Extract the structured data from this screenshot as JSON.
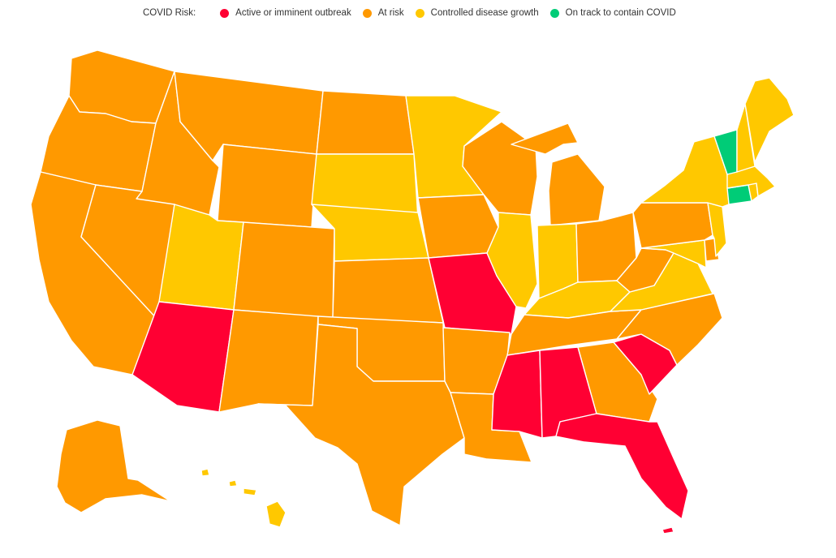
{
  "legend": {
    "title": "COVID Risk:",
    "items": [
      {
        "key": "active",
        "label": "Active or imminent outbreak",
        "color": "#ff0033"
      },
      {
        "key": "risk",
        "label": "At risk",
        "color": "#ff9900"
      },
      {
        "key": "controlled",
        "label": "Controlled disease growth",
        "color": "#ffc800"
      },
      {
        "key": "track",
        "label": "On track to contain COVID",
        "color": "#00cc77"
      }
    ]
  },
  "colors": {
    "active": "#ff0033",
    "risk": "#ff9900",
    "controlled": "#ffc800",
    "track": "#00cc77",
    "border": "#ffffff"
  },
  "states": [
    {
      "name": "Washington",
      "risk": "risk"
    },
    {
      "name": "Oregon",
      "risk": "risk"
    },
    {
      "name": "California",
      "risk": "risk"
    },
    {
      "name": "Idaho",
      "risk": "risk"
    },
    {
      "name": "Nevada",
      "risk": "risk"
    },
    {
      "name": "Montana",
      "risk": "risk"
    },
    {
      "name": "Wyoming",
      "risk": "risk"
    },
    {
      "name": "Utah",
      "risk": "controlled"
    },
    {
      "name": "Arizona",
      "risk": "active"
    },
    {
      "name": "Colorado",
      "risk": "risk"
    },
    {
      "name": "New Mexico",
      "risk": "risk"
    },
    {
      "name": "North Dakota",
      "risk": "risk"
    },
    {
      "name": "South Dakota",
      "risk": "controlled"
    },
    {
      "name": "Nebraska",
      "risk": "controlled"
    },
    {
      "name": "Kansas",
      "risk": "risk"
    },
    {
      "name": "Oklahoma",
      "risk": "risk"
    },
    {
      "name": "Texas",
      "risk": "risk"
    },
    {
      "name": "Minnesota",
      "risk": "controlled"
    },
    {
      "name": "Iowa",
      "risk": "risk"
    },
    {
      "name": "Missouri",
      "risk": "active"
    },
    {
      "name": "Arkansas",
      "risk": "risk"
    },
    {
      "name": "Louisiana",
      "risk": "risk"
    },
    {
      "name": "Wisconsin",
      "risk": "risk"
    },
    {
      "name": "Illinois",
      "risk": "controlled"
    },
    {
      "name": "Michigan",
      "risk": "risk"
    },
    {
      "name": "Indiana",
      "risk": "controlled"
    },
    {
      "name": "Ohio",
      "risk": "risk"
    },
    {
      "name": "Kentucky",
      "risk": "controlled"
    },
    {
      "name": "Tennessee",
      "risk": "risk"
    },
    {
      "name": "Mississippi",
      "risk": "active"
    },
    {
      "name": "Alabama",
      "risk": "active"
    },
    {
      "name": "Georgia",
      "risk": "risk"
    },
    {
      "name": "Florida",
      "risk": "active"
    },
    {
      "name": "South Carolina",
      "risk": "active"
    },
    {
      "name": "North Carolina",
      "risk": "risk"
    },
    {
      "name": "Virginia",
      "risk": "controlled"
    },
    {
      "name": "West Virginia",
      "risk": "risk"
    },
    {
      "name": "Maryland",
      "risk": "controlled"
    },
    {
      "name": "Delaware",
      "risk": "risk"
    },
    {
      "name": "Pennsylvania",
      "risk": "risk"
    },
    {
      "name": "New Jersey",
      "risk": "controlled"
    },
    {
      "name": "New York",
      "risk": "controlled"
    },
    {
      "name": "Connecticut",
      "risk": "track"
    },
    {
      "name": "Rhode Island",
      "risk": "controlled"
    },
    {
      "name": "Massachusetts",
      "risk": "controlled"
    },
    {
      "name": "Vermont",
      "risk": "track"
    },
    {
      "name": "New Hampshire",
      "risk": "controlled"
    },
    {
      "name": "Maine",
      "risk": "controlled"
    },
    {
      "name": "Alaska",
      "risk": "risk"
    },
    {
      "name": "Hawaii",
      "risk": "controlled"
    },
    {
      "name": "Puerto Rico",
      "risk": "active"
    }
  ]
}
